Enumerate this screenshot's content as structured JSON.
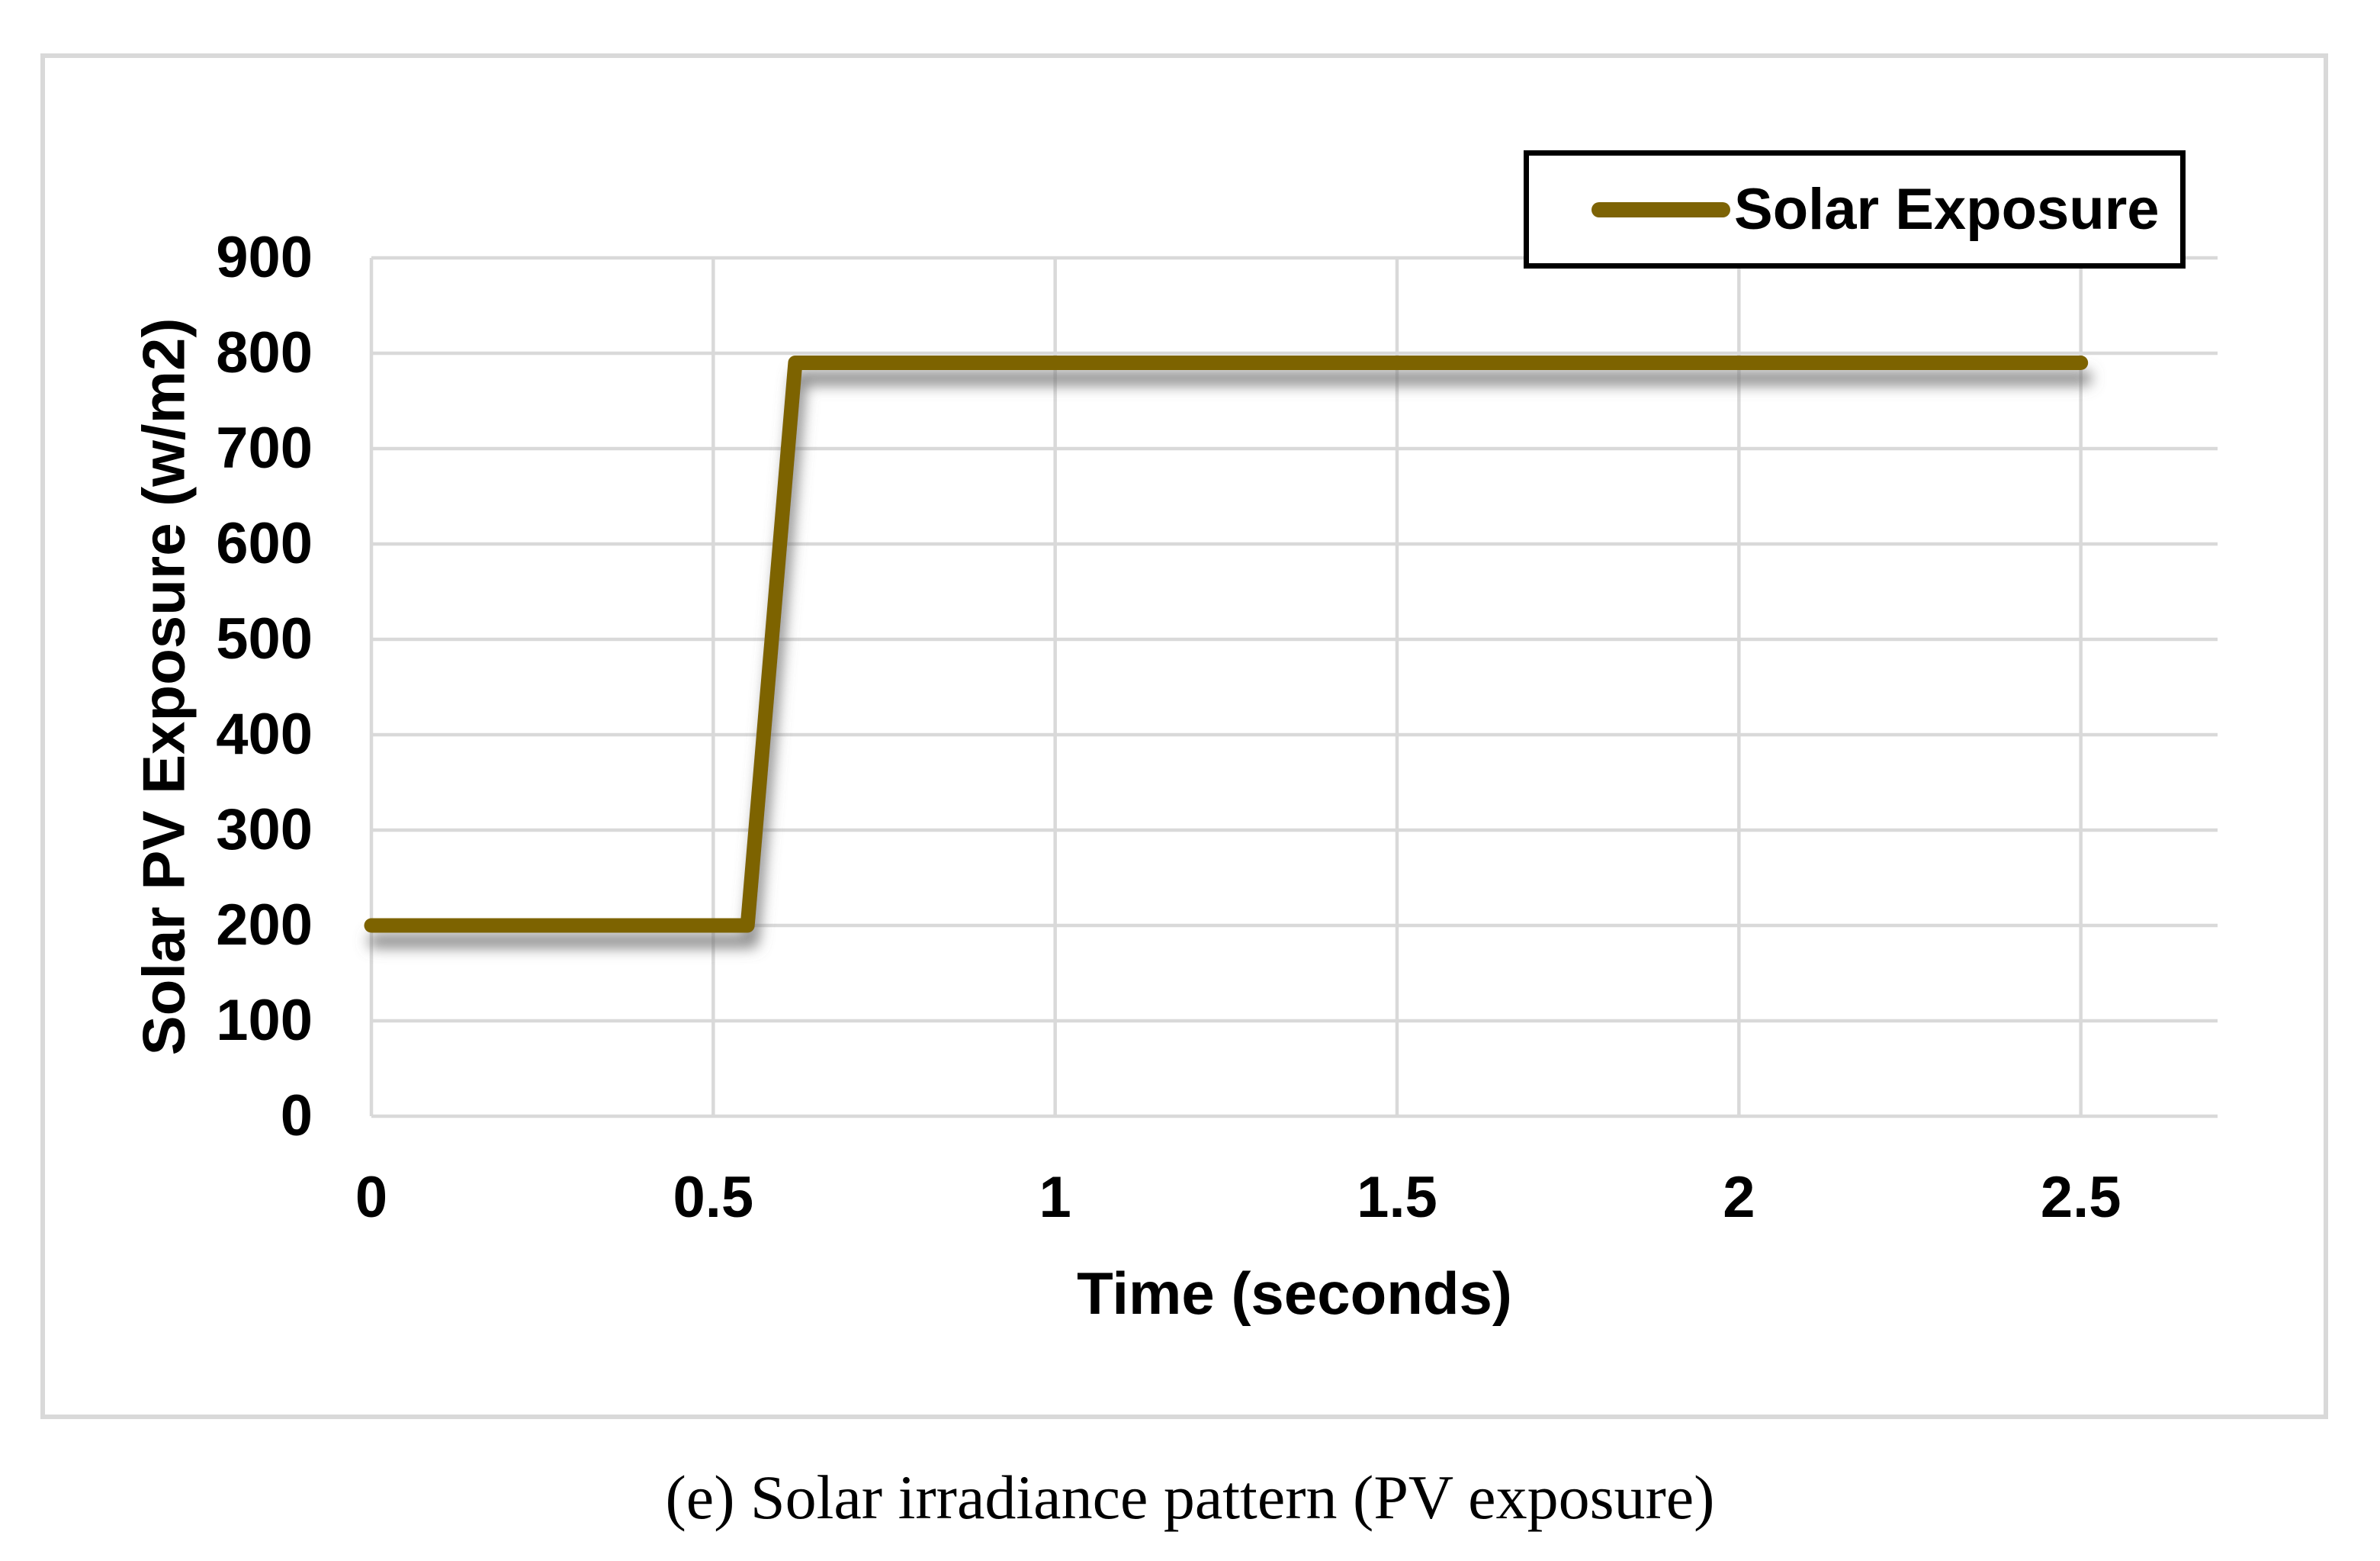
{
  "figure": {
    "caption": "(e) Solar irradiance pattern (PV exposure)"
  },
  "chart_data": {
    "type": "line",
    "title": "",
    "xlabel": "Time (seconds)",
    "ylabel": "Solar PV Exposure (w/m2)",
    "xlim": [
      0,
      2.7
    ],
    "ylim": [
      0,
      900
    ],
    "x_ticks": [
      0,
      0.5,
      1,
      1.5,
      2,
      2.5
    ],
    "x_tick_labels": [
      "0",
      "0.5",
      "1",
      "1.5",
      "2",
      "2.5"
    ],
    "y_ticks": [
      0,
      100,
      200,
      300,
      400,
      500,
      600,
      700,
      800,
      900
    ],
    "y_tick_labels": [
      "0",
      "100",
      "200",
      "300",
      "400",
      "500",
      "600",
      "700",
      "800",
      "900"
    ],
    "grid": true,
    "legend_position": "top-right",
    "series": [
      {
        "name": "Solar Exposure",
        "color": "#7D6305",
        "points": [
          [
            0,
            200
          ],
          [
            0.55,
            200
          ],
          [
            0.62,
            790
          ],
          [
            2.5,
            790
          ]
        ]
      }
    ],
    "colors": {
      "gridline": "#D9D9D9",
      "figure_border": "#D9D9D9",
      "legend_border": "#000000",
      "text": "#000000",
      "background": "#FFFFFF"
    }
  }
}
